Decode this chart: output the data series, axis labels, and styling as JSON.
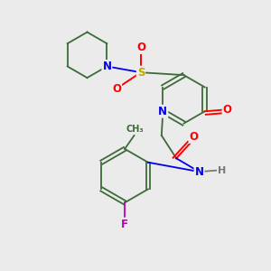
{
  "background_color": "#ebebeb",
  "bond_color": "#3d6b38",
  "atom_colors": {
    "N": "#0000ee",
    "O": "#ff0000",
    "S": "#bbaa00",
    "F": "#bb00bb",
    "H": "#777777",
    "C": "#000000"
  },
  "font_size_atom": 8.5,
  "fig_width": 3.0,
  "fig_height": 3.0,
  "dpi": 100,
  "xlim": [
    0,
    10
  ],
  "ylim": [
    0,
    10
  ]
}
